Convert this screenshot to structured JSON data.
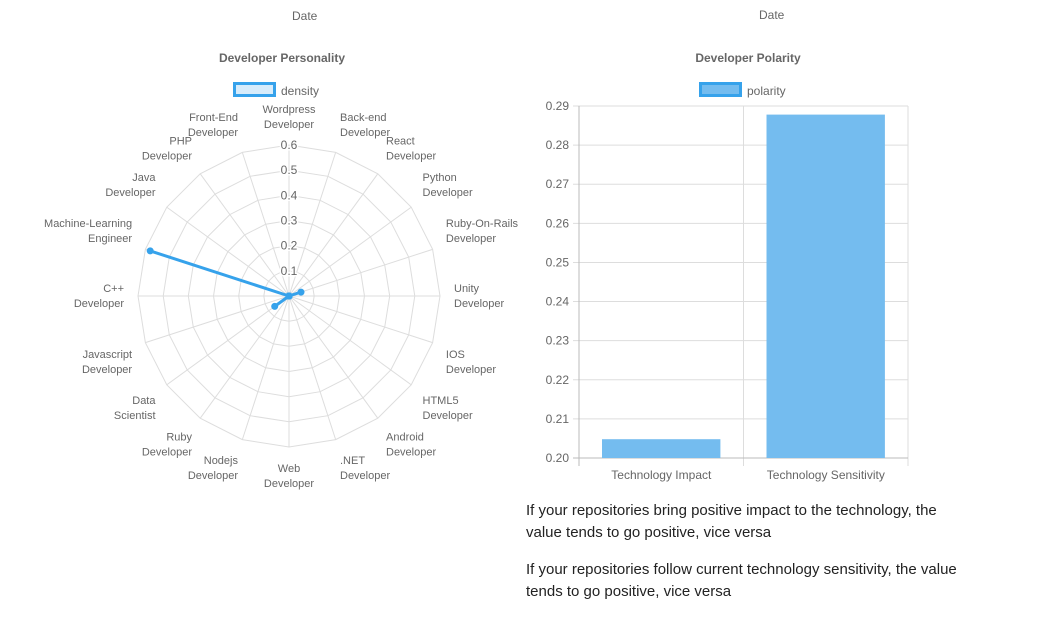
{
  "header": {
    "left_date": "Date",
    "right_date": "Date"
  },
  "colors": {
    "radar_line": "#36a2eb",
    "radar_fill": "#d7ecfb",
    "bar_fill": "#74bcef",
    "bar_border": "#36a2eb",
    "grid": "#dddddd"
  },
  "chart_data": [
    {
      "type": "radar",
      "title": "Developer Personality",
      "legend": {
        "label": "density",
        "position": "top"
      },
      "categories": [
        [
          "Wordpress",
          "Developer"
        ],
        [
          "Back-end",
          "Developer"
        ],
        [
          "React",
          "Developer"
        ],
        [
          "Python",
          "Developer"
        ],
        [
          "Ruby-On-Rails",
          "Developer"
        ],
        [
          "Unity",
          "Developer"
        ],
        [
          "IOS",
          "Developer"
        ],
        [
          "HTML5",
          "Developer"
        ],
        [
          "Android",
          "Developer"
        ],
        [
          ".NET",
          "Developer"
        ],
        [
          "Web",
          "Developer"
        ],
        [
          "Nodejs",
          "Developer"
        ],
        [
          "Ruby",
          "Developer"
        ],
        [
          "Data",
          "Scientist"
        ],
        [
          "Javascript",
          "Developer"
        ],
        [
          "C++",
          "Developer"
        ],
        [
          "Machine-Learning",
          "Engineer"
        ],
        [
          "Java",
          "Developer"
        ],
        [
          "PHP",
          "Developer"
        ],
        [
          "Front-End",
          "Developer"
        ]
      ],
      "series": [
        {
          "name": "density",
          "values": [
            0,
            0,
            0,
            0,
            0.05,
            0,
            0,
            0,
            0,
            0,
            0,
            0,
            0,
            0.07,
            0,
            0,
            0.58,
            0,
            0,
            0
          ]
        }
      ],
      "r_ticks": [
        "0.1",
        "0.2",
        "0.3",
        "0.4",
        "0.5",
        "0.6"
      ],
      "r_range": [
        0,
        0.6
      ]
    },
    {
      "type": "bar",
      "title": "Developer Polarity",
      "legend": {
        "label": "polarity",
        "position": "top"
      },
      "categories": [
        "Technology Impact",
        "Technology Sensitivity"
      ],
      "series": [
        {
          "name": "polarity",
          "values": [
            0.2048,
            0.2878
          ]
        }
      ],
      "ylim": [
        0.2,
        0.29
      ],
      "y_ticks": [
        "0.29",
        "0.28",
        "0.27",
        "0.26",
        "0.25",
        "0.24",
        "0.23",
        "0.22",
        "0.21",
        "0.20"
      ],
      "grid": true
    }
  ],
  "descriptions": {
    "impact": "If your repositories bring positive impact to the technology, the value tends to go positive, vice versa",
    "sensitivity": "If your repositories follow current technology sensitivity, the value tends to go positive, vice versa"
  }
}
